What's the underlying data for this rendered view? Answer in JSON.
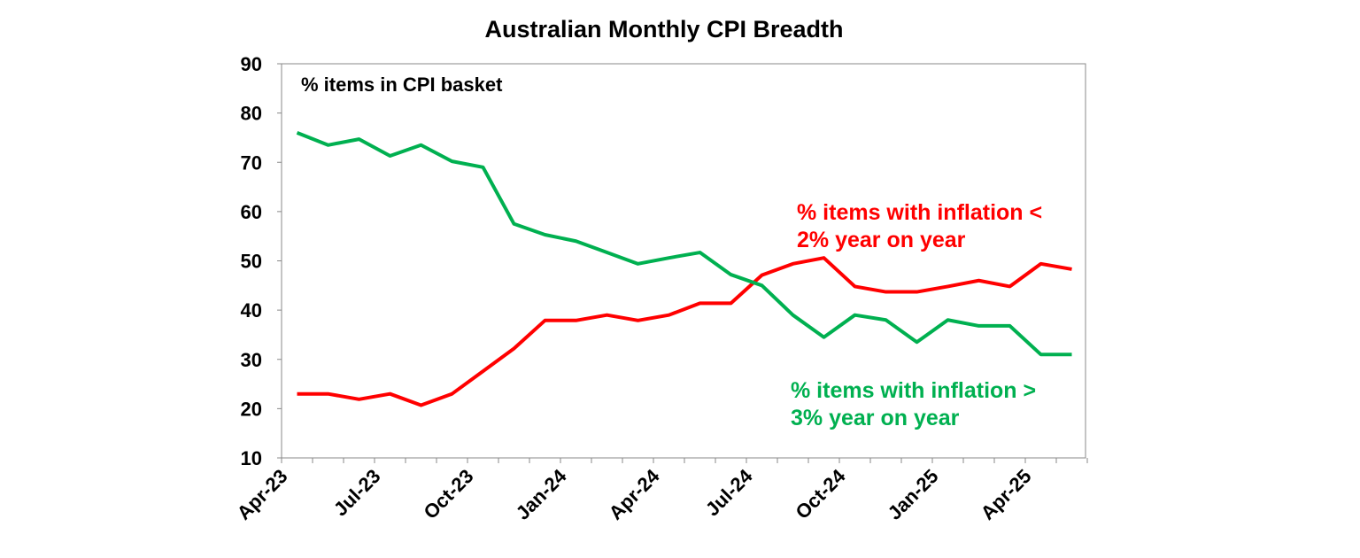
{
  "chart_data": {
    "type": "line",
    "title": "Australian Monthly CPI Breadth",
    "ylabel": "% items in CPI basket",
    "xlabel": "",
    "ylim": [
      10,
      90
    ],
    "yticks": [
      "10",
      "20",
      "30",
      "40",
      "50",
      "60",
      "70",
      "80",
      "90"
    ],
    "xtick_labels": [
      "Apr-23",
      "Jul-23",
      "Oct-23",
      "Jan-24",
      "Apr-24",
      "Jul-24",
      "Oct-24",
      "Jan-25",
      "Apr-25"
    ],
    "x": [
      "Apr-23",
      "May-23",
      "Jun-23",
      "Jul-23",
      "Aug-23",
      "Sep-23",
      "Oct-23",
      "Nov-23",
      "Dec-23",
      "Jan-24",
      "Feb-24",
      "Mar-24",
      "Apr-24",
      "May-24",
      "Jun-24",
      "Jul-24",
      "Aug-24",
      "Sep-24",
      "Oct-24",
      "Nov-24",
      "Dec-24",
      "Jan-25",
      "Feb-25",
      "Mar-25",
      "Apr-25",
      "May-25"
    ],
    "grid": false,
    "series": [
      {
        "name": "% items with inflation < 2% year on year",
        "label_lines": [
          "% items with inflation <",
          "2% year on year"
        ],
        "color": "#ff0000",
        "values": [
          23,
          23,
          21.9,
          23,
          20.7,
          23,
          27.6,
          32.2,
          37.9,
          37.9,
          39,
          37.9,
          39,
          41.4,
          41.4,
          47.1,
          49.4,
          50.6,
          44.8,
          43.7,
          43.7,
          44.8,
          46,
          44.8,
          49.4,
          48.3
        ]
      },
      {
        "name": "% items with inflation > 3% year on year",
        "label_lines": [
          "% items with inflation >",
          "3% year on year"
        ],
        "color": "#00b050",
        "values": [
          76,
          73.5,
          74.7,
          71.3,
          73.5,
          70.2,
          69,
          57.5,
          55.3,
          54,
          51.7,
          49.4,
          50.6,
          51.7,
          47.2,
          45,
          39,
          34.5,
          39,
          38,
          33.5,
          38,
          36.8,
          36.8,
          31,
          31
        ]
      }
    ]
  }
}
